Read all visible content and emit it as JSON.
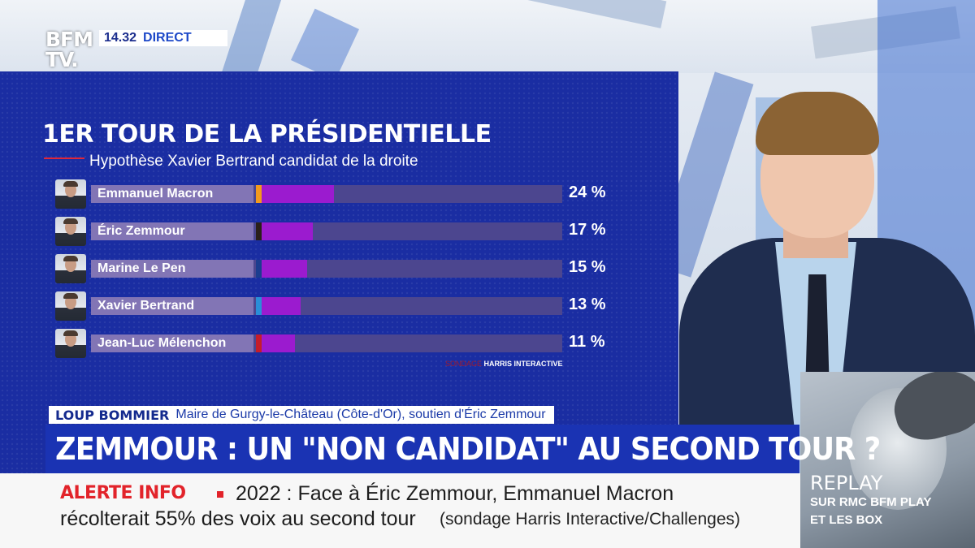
{
  "broadcast": {
    "logo_line1": "BFM",
    "logo_line2": "TV.",
    "time": "14.32",
    "live_label": "DIRECT"
  },
  "chart_data": {
    "type": "bar",
    "title": "1ER TOUR DE LA PRÉSIDENTIELLE",
    "subtitle": "Hypothèse Xavier Bertrand candidat de la droite",
    "categories": [
      "Emmanuel Macron",
      "Éric Zemmour",
      "Marine Le Pen",
      "Xavier Bertrand",
      "Jean-Luc Mélenchon"
    ],
    "values": [
      24,
      17,
      15,
      13,
      11
    ],
    "labels": [
      "24 %",
      "17 %",
      "15 %",
      "13 %",
      "11 %"
    ],
    "party_colors": [
      "#f39a1d",
      "#2a2019",
      "#1c3d8f",
      "#2a8fd8",
      "#c51d2a"
    ],
    "bar_color": "#9b1bcf",
    "xlim": [
      0,
      100
    ],
    "source_lead": "SONDAGE",
    "source": "HARRIS INTERACTIVE"
  },
  "guest": {
    "name": "LOUP BOMMIER",
    "role": "Maire de Gurgy-le-Château (Côte-d'Or), soutien d'Éric Zemmour"
  },
  "headline": "ZEMMOUR : UN \"NON CANDIDAT\" AU SECOND TOUR ?",
  "ticker": {
    "label": "ALERTE INFO",
    "line1": "2022 : Face à Éric Zemmour, Emmanuel Macron",
    "line2": "récolterait 55% des voix au second tour",
    "source": "(sondage Harris Interactive/Challenges)"
  },
  "replay": {
    "title": "REPLAY",
    "line1": "SUR RMC BFM PLAY",
    "line2": "ET LES BOX"
  }
}
